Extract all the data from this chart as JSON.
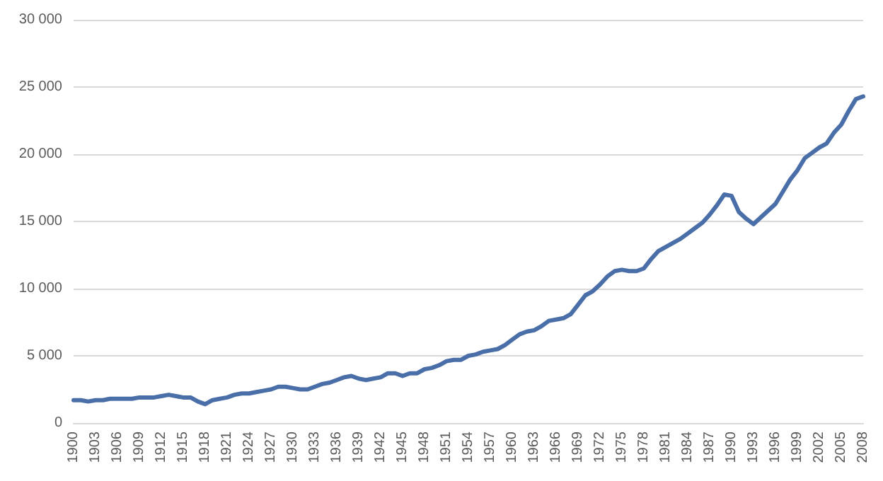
{
  "chart_data": {
    "type": "line",
    "categories": [
      "1900",
      null,
      null,
      "1903",
      null,
      null,
      "1906",
      null,
      null,
      "1909",
      null,
      null,
      "1912",
      null,
      null,
      "1915",
      null,
      null,
      "1918",
      null,
      null,
      "1921",
      null,
      null,
      "1924",
      null,
      null,
      "1927",
      null,
      null,
      "1930",
      null,
      null,
      "1933",
      null,
      null,
      "1936",
      null,
      null,
      "1939",
      null,
      null,
      "1942",
      null,
      null,
      "1945",
      null,
      null,
      "1948",
      null,
      null,
      "1951",
      null,
      null,
      "1954",
      null,
      null,
      "1957",
      null,
      null,
      "1960",
      null,
      null,
      "1963",
      null,
      null,
      "1966",
      null,
      null,
      "1969",
      null,
      null,
      "1972",
      null,
      null,
      "1975",
      null,
      null,
      "1978",
      null,
      null,
      "1981",
      null,
      null,
      "1984",
      null,
      null,
      "1987",
      null,
      null,
      "1990",
      null,
      null,
      "1993",
      null,
      null,
      "1996",
      null,
      null,
      "1999",
      null,
      null,
      "2002",
      null,
      null,
      "2005",
      null,
      null,
      "2008"
    ],
    "series": [
      {
        "color": "#4a6fa8",
        "values": [
          1700,
          1700,
          1600,
          1700,
          1700,
          1800,
          1800,
          1800,
          1800,
          1900,
          1900,
          1900,
          2000,
          2100,
          2000,
          1900,
          1900,
          1600,
          1400,
          1700,
          1800,
          1900,
          2100,
          2200,
          2200,
          2300,
          2400,
          2500,
          2700,
          2700,
          2600,
          2500,
          2500,
          2700,
          2900,
          3000,
          3200,
          3400,
          3500,
          3300,
          3200,
          3300,
          3400,
          3700,
          3700,
          3500,
          3700,
          3700,
          4000,
          4100,
          4300,
          4600,
          4700,
          4700,
          5000,
          5100,
          5300,
          5400,
          5500,
          5800,
          6200,
          6600,
          6800,
          6900,
          7200,
          7600,
          7700,
          7800,
          8100,
          8800,
          9500,
          9800,
          10300,
          10900,
          11300,
          11400,
          11300,
          11300,
          11500,
          12200,
          12800,
          13100,
          13400,
          13700,
          14100,
          14500,
          14900,
          15500,
          16200,
          17000,
          16900,
          15700,
          15200,
          14800,
          15300,
          15800,
          16300,
          17200,
          18100,
          18800,
          19700,
          20100,
          20500,
          20800,
          21600,
          22200,
          23200,
          24100,
          24300
        ]
      }
    ],
    "ylim": [
      0,
      30000
    ],
    "yticks": [
      0,
      5000,
      10000,
      15000,
      20000,
      25000,
      30000
    ],
    "grid": "y",
    "marker": "none",
    "line_style": "solid"
  }
}
